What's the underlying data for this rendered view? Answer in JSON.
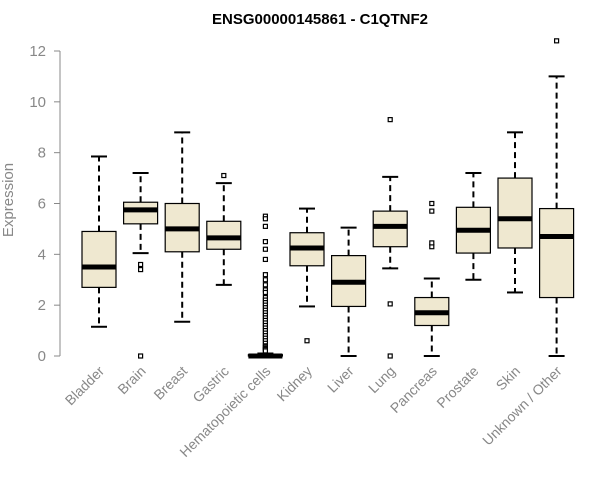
{
  "chart_data": {
    "type": "boxplot",
    "title": "ENSG00000145861 - C1QTNF2",
    "xlabel": "",
    "ylabel": "Expression",
    "ylim": [
      0,
      12.5
    ],
    "yticks": [
      0,
      2,
      4,
      6,
      8,
      10,
      12
    ],
    "colors": {
      "box_fill": "#efe8d0",
      "box_stroke": "#000000",
      "axis": "#888888"
    },
    "categories": [
      "Bladder",
      "Brain",
      "Breast",
      "Gastric",
      "Hematopoietic cells",
      "Kidney",
      "Liver",
      "Lung",
      "Pancreas",
      "Prostate",
      "Skin",
      "Unknown / Other"
    ],
    "boxes": [
      {
        "category": "Bladder",
        "min": 1.15,
        "q1": 2.7,
        "median": 3.5,
        "q3": 4.9,
        "max": 7.85,
        "outliers": []
      },
      {
        "category": "Brain",
        "min": 4.05,
        "q1": 5.2,
        "median": 5.75,
        "q3": 6.05,
        "max": 7.2,
        "outliers": [
          0.0,
          3.4,
          3.6
        ]
      },
      {
        "category": "Breast",
        "min": 1.35,
        "q1": 4.1,
        "median": 5.0,
        "q3": 6.0,
        "max": 8.8,
        "outliers": []
      },
      {
        "category": "Gastric",
        "min": 2.8,
        "q1": 4.2,
        "median": 4.65,
        "q3": 5.3,
        "max": 6.8,
        "outliers": [
          7.1
        ]
      },
      {
        "category": "Hematopoietic cells",
        "min": 0.0,
        "q1": 0.0,
        "median": 0.0,
        "q3": 0.05,
        "max": 0.1,
        "outliers": [
          5.5,
          5.4,
          5.1,
          4.5,
          4.2,
          3.8,
          3.2,
          3.0,
          2.8,
          2.6,
          2.5,
          2.3,
          2.2,
          2.1,
          2.0,
          1.9,
          1.8,
          1.7,
          1.6,
          1.5,
          1.4,
          1.3,
          1.2,
          1.1,
          1.0,
          0.9,
          0.8,
          0.7,
          0.6,
          0.5,
          0.4,
          0.35,
          0.3,
          0.25,
          0.2
        ]
      },
      {
        "category": "Kidney",
        "min": 1.95,
        "q1": 3.55,
        "median": 4.25,
        "q3": 4.85,
        "max": 5.8,
        "outliers": [
          0.6
        ]
      },
      {
        "category": "Liver",
        "min": 0.0,
        "q1": 1.95,
        "median": 2.9,
        "q3": 3.95,
        "max": 5.05,
        "outliers": []
      },
      {
        "category": "Lung",
        "min": 3.45,
        "q1": 4.3,
        "median": 5.1,
        "q3": 5.7,
        "max": 7.05,
        "outliers": [
          0.0,
          2.05,
          9.3
        ]
      },
      {
        "category": "Pancreas",
        "min": 0.0,
        "q1": 1.2,
        "median": 1.7,
        "q3": 2.3,
        "max": 3.05,
        "outliers": [
          4.3,
          4.45,
          5.7,
          6.0
        ]
      },
      {
        "category": "Prostate",
        "min": 3.0,
        "q1": 4.05,
        "median": 4.95,
        "q3": 5.85,
        "max": 7.2,
        "outliers": []
      },
      {
        "category": "Skin",
        "min": 2.5,
        "q1": 4.25,
        "median": 5.4,
        "q3": 7.0,
        "max": 8.8,
        "outliers": []
      },
      {
        "category": "Unknown / Other",
        "min": 0.0,
        "q1": 2.3,
        "median": 4.7,
        "q3": 5.8,
        "max": 11.0,
        "outliers": [
          12.4
        ]
      }
    ]
  }
}
